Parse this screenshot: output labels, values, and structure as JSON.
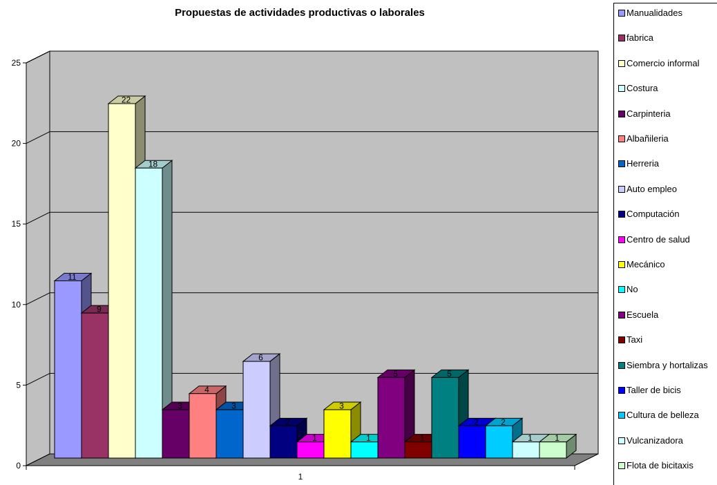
{
  "chart_data": {
    "type": "bar",
    "title": "Propuestas de actividades productivas o laborales",
    "categories": [
      "1"
    ],
    "ylim": [
      0,
      25
    ],
    "yticks": [
      0,
      5,
      10,
      15,
      20,
      25
    ],
    "grid": true,
    "legend_position": "right",
    "series": [
      {
        "name": "Manualidades",
        "values": [
          11
        ],
        "color": "#9999ff"
      },
      {
        "name": "fabrica",
        "values": [
          9
        ],
        "color": "#993366"
      },
      {
        "name": "Comercio informal",
        "values": [
          22
        ],
        "color": "#ffffcc"
      },
      {
        "name": "Costura",
        "values": [
          18
        ],
        "color": "#ccffff"
      },
      {
        "name": "Carpinteria",
        "values": [
          3
        ],
        "color": "#660066"
      },
      {
        "name": "Albañileria",
        "values": [
          4
        ],
        "color": "#ff8080"
      },
      {
        "name": "Herreria",
        "values": [
          3
        ],
        "color": "#0066cc"
      },
      {
        "name": "Auto empleo",
        "values": [
          6
        ],
        "color": "#ccccff"
      },
      {
        "name": "Computación",
        "values": [
          2
        ],
        "color": "#000080"
      },
      {
        "name": "Centro de salud",
        "values": [
          1
        ],
        "color": "#ff00ff"
      },
      {
        "name": "Mecánico",
        "values": [
          3
        ],
        "color": "#ffff00"
      },
      {
        "name": "No",
        "values": [
          1
        ],
        "color": "#00ffff"
      },
      {
        "name": "Escuela",
        "values": [
          5
        ],
        "color": "#800080"
      },
      {
        "name": "Taxi",
        "values": [
          1
        ],
        "color": "#800000"
      },
      {
        "name": "Siembra y hortalizas",
        "values": [
          5
        ],
        "color": "#008080"
      },
      {
        "name": "Taller de bicis",
        "values": [
          2
        ],
        "color": "#0000ff"
      },
      {
        "name": "Cultura de belleza",
        "values": [
          2
        ],
        "color": "#00ccff"
      },
      {
        "name": "Vulcanizadora",
        "values": [
          1
        ],
        "color": "#ccffff"
      },
      {
        "name": "Flota de bicitaxis",
        "values": [
          1
        ],
        "color": "#ccffcc"
      }
    ]
  }
}
